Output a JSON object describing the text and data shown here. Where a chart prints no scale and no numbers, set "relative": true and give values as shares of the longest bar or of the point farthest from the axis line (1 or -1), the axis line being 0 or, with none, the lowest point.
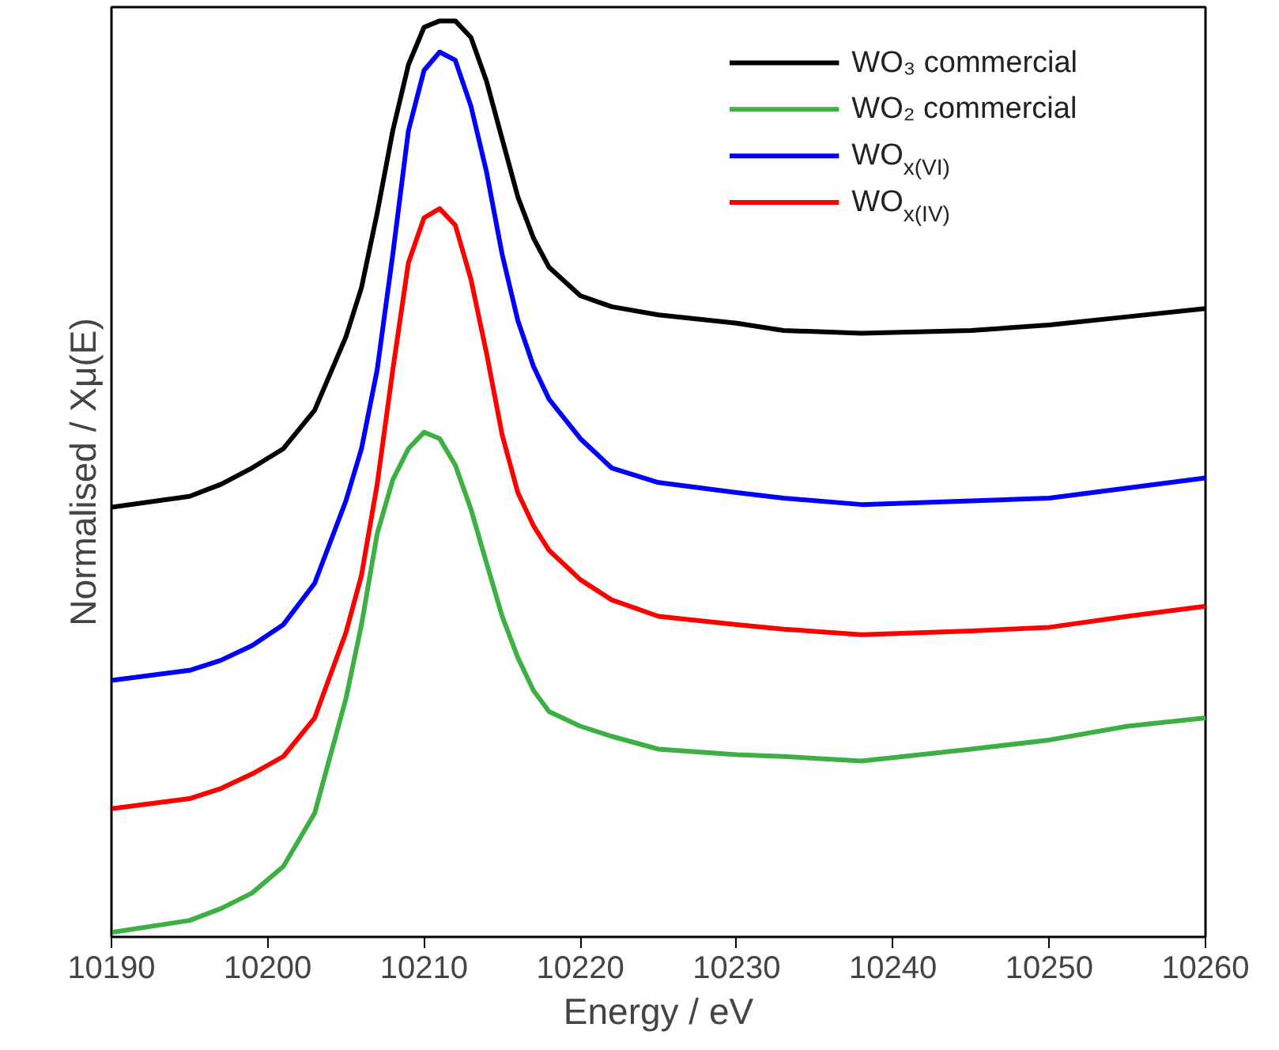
{
  "chart_data": {
    "type": "line",
    "relative": true,
    "xlabel": "Energy / eV",
    "ylabel": "Normalised / Xμ(E)",
    "x": [
      10190,
      10195,
      10197,
      10199,
      10201,
      10203,
      10205,
      10206,
      10207,
      10208,
      10209,
      10210,
      10211,
      10212,
      10213,
      10214,
      10215,
      10216,
      10217,
      10218,
      10220,
      10222,
      10225,
      10230,
      10233,
      10238,
      10245,
      10250,
      10255,
      10260
    ],
    "xlim": [
      10190,
      10260
    ],
    "xticks": [
      10190,
      10200,
      10210,
      10220,
      10230,
      10240,
      10250,
      10260
    ],
    "tick_labels": "x",
    "grid": false,
    "legend": "top right",
    "line_style": "solid",
    "marker": "none",
    "series": [
      {
        "name": "WO₃ commercial",
        "color": "#000000",
        "values": [
          0.469,
          0.481,
          0.494,
          0.512,
          0.533,
          0.575,
          0.655,
          0.709,
          0.79,
          0.88,
          0.952,
          0.993,
          1.0,
          1.0,
          0.982,
          0.934,
          0.871,
          0.808,
          0.763,
          0.731,
          0.7,
          0.688,
          0.679,
          0.67,
          0.662,
          0.659,
          0.662,
          0.668,
          0.677,
          0.686
        ]
      },
      {
        "name": "WO₂ commercial",
        "color": "#3cb043",
        "values": [
          0.005,
          0.018,
          0.031,
          0.048,
          0.077,
          0.135,
          0.26,
          0.341,
          0.44,
          0.499,
          0.533,
          0.551,
          0.544,
          0.515,
          0.467,
          0.408,
          0.35,
          0.305,
          0.269,
          0.246,
          0.23,
          0.219,
          0.205,
          0.199,
          0.197,
          0.192,
          0.205,
          0.215,
          0.23,
          0.239
        ]
      },
      {
        "name": "WO$_{x(VI)}$",
        "color": "#0000ff",
        "values": [
          0.28,
          0.291,
          0.302,
          0.318,
          0.341,
          0.386,
          0.476,
          0.533,
          0.619,
          0.745,
          0.88,
          0.946,
          0.966,
          0.957,
          0.907,
          0.835,
          0.745,
          0.673,
          0.623,
          0.587,
          0.544,
          0.512,
          0.496,
          0.485,
          0.479,
          0.472,
          0.476,
          0.479,
          0.49,
          0.501
        ]
      },
      {
        "name": "WO$_{x(IV)}$",
        "color": "#ff0000",
        "values": [
          0.14,
          0.151,
          0.162,
          0.178,
          0.197,
          0.239,
          0.332,
          0.395,
          0.494,
          0.619,
          0.736,
          0.785,
          0.795,
          0.777,
          0.718,
          0.637,
          0.548,
          0.485,
          0.449,
          0.422,
          0.39,
          0.368,
          0.35,
          0.341,
          0.336,
          0.33,
          0.334,
          0.338,
          0.35,
          0.361
        ]
      }
    ]
  }
}
